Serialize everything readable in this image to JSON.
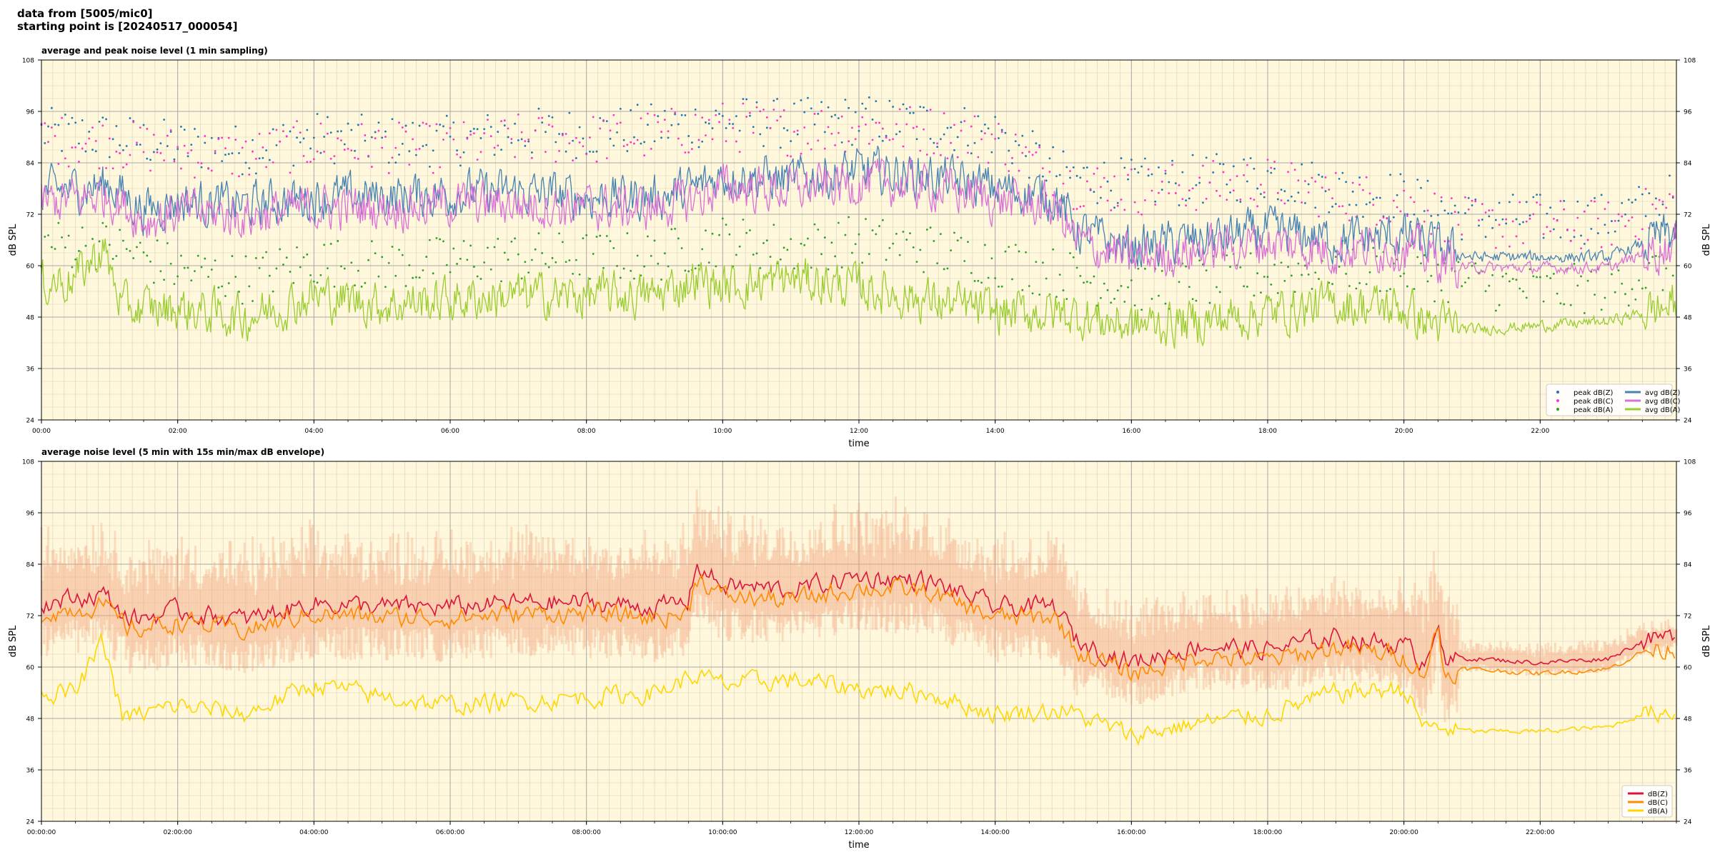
{
  "header": {
    "line1": "data from [5005/mic0]",
    "line2": "starting point is [20240517_000054]"
  },
  "chart_data": [
    {
      "type": "line",
      "title": "average and peak noise level (1 min sampling)",
      "xlabel": "time",
      "ylabel": "dB SPL",
      "ylim": [
        24,
        108
      ],
      "xlim_hours": [
        0,
        24
      ],
      "yticks": [
        24,
        36,
        48,
        60,
        72,
        84,
        96,
        108
      ],
      "xtick_labels": [
        "00:00",
        "02:00",
        "04:00",
        "06:00",
        "08:00",
        "10:00",
        "12:00",
        "14:00",
        "16:00",
        "18:00",
        "20:00",
        "22:00"
      ],
      "grid": true,
      "background": "#fff8dc",
      "legend_position": "lower-right",
      "legend_columns": 2,
      "series": [
        {
          "name": "peak dB(Z)",
          "style": "points",
          "color": "#1f77b4",
          "offset": 7.0,
          "anchors_hour": [
            0,
            1,
            2,
            3,
            4,
            5,
            6,
            7,
            8,
            9,
            10,
            11,
            12,
            13,
            14,
            15,
            16,
            17,
            18,
            19,
            20,
            21,
            22,
            23,
            24
          ],
          "anchors_db": [
            84,
            83,
            81,
            80,
            83,
            82,
            82,
            84,
            84,
            85,
            87,
            86,
            87,
            86,
            84,
            74,
            72,
            73,
            74,
            71,
            69,
            64,
            64,
            64,
            69
          ]
        },
        {
          "name": "peak dB(C)",
          "style": "points",
          "color": "#ff33cc",
          "offset": 5.5,
          "anchors_hour": [
            0,
            1,
            2,
            3,
            4,
            5,
            6,
            7,
            8,
            9,
            10,
            11,
            12,
            13,
            14,
            15,
            16,
            17,
            18,
            19,
            20,
            21,
            22,
            23,
            24
          ],
          "anchors_db": [
            84,
            83,
            81,
            80,
            83,
            82,
            82,
            84,
            84,
            85,
            87,
            86,
            87,
            86,
            84,
            74,
            72,
            73,
            74,
            71,
            69,
            64,
            64,
            64,
            69
          ]
        },
        {
          "name": "peak dB(A)",
          "style": "points",
          "color": "#2ca02c",
          "offset": 9.0,
          "anchors_hour": [
            0,
            1,
            2,
            3,
            4,
            5,
            6,
            7,
            8,
            9,
            10,
            11,
            12,
            13,
            14,
            15,
            16,
            17,
            18,
            19,
            20,
            21,
            22,
            23,
            24
          ],
          "anchors_db": [
            56,
            56,
            50,
            48,
            52,
            51,
            52,
            53,
            53,
            53,
            57,
            55,
            57,
            55,
            52,
            49,
            46,
            47,
            49,
            51,
            50,
            47,
            45,
            46,
            51
          ]
        },
        {
          "name": "avg dB(Z)",
          "style": "line",
          "color": "#4682b4",
          "offset": 0,
          "anchors_hour": [
            0,
            0.5,
            1,
            1.5,
            2,
            3,
            4,
            5,
            6,
            7,
            8,
            9,
            9.6,
            10,
            11,
            12,
            13,
            14,
            14.9,
            15.2,
            16,
            17,
            18,
            19,
            20,
            20.5,
            21,
            22,
            23,
            24
          ],
          "anchors_db": [
            77,
            78,
            79,
            73,
            75,
            74,
            76,
            76,
            77,
            77,
            76,
            76,
            78,
            81,
            80,
            82,
            81,
            78,
            76,
            68,
            64,
            66,
            68,
            66,
            67,
            64,
            62,
            62,
            62,
            68
          ]
        },
        {
          "name": "avg dB(C)",
          "style": "line",
          "color": "#da70d6",
          "offset": -2.5,
          "anchors_hour": [
            0,
            0.5,
            1,
            1.5,
            2,
            3,
            4,
            5,
            6,
            7,
            8,
            9,
            9.6,
            10,
            11,
            12,
            13,
            14,
            14.9,
            15.2,
            16,
            17,
            18,
            19,
            20,
            20.5,
            21,
            22,
            23,
            24
          ],
          "anchors_db": [
            77,
            78,
            79,
            73,
            75,
            74,
            76,
            76,
            77,
            77,
            76,
            76,
            78,
            81,
            80,
            82,
            81,
            78,
            76,
            68,
            64,
            66,
            68,
            66,
            67,
            64,
            62,
            62,
            62,
            68
          ]
        },
        {
          "name": "avg dB(A)",
          "style": "line",
          "color": "#9acd32",
          "offset": 0,
          "anchors_hour": [
            0,
            0.5,
            0.9,
            1.2,
            2,
            3,
            4,
            5,
            6,
            7,
            8,
            9,
            9.6,
            10,
            11,
            12,
            13,
            14,
            15,
            16,
            17,
            18,
            19,
            20,
            20.3,
            21,
            22,
            23,
            23.5,
            24
          ],
          "anchors_db": [
            56,
            57,
            64,
            50,
            50,
            48,
            53,
            51,
            52,
            53,
            53,
            53,
            57,
            55,
            57,
            55,
            52,
            49,
            49,
            46,
            47,
            49,
            51,
            50,
            47,
            45,
            46,
            47,
            49,
            51
          ]
        }
      ]
    },
    {
      "type": "line",
      "title": "average noise level (5 min with 15s min/max dB envelope)",
      "xlabel": "time",
      "ylabel": "dB SPL",
      "ylim": [
        24,
        108
      ],
      "xlim_hours": [
        0,
        24
      ],
      "yticks": [
        24,
        36,
        48,
        60,
        72,
        84,
        96,
        108
      ],
      "xtick_labels": [
        "00:00:00",
        "02:00:00",
        "04:00:00",
        "06:00:00",
        "08:00:00",
        "10:00:00",
        "12:00:00",
        "14:00:00",
        "16:00:00",
        "18:00:00",
        "20:00:00",
        "22:00:00"
      ],
      "grid": true,
      "background": "#fff8dc",
      "legend_position": "lower-right",
      "envelope": {
        "color": "#f4a582",
        "spread_db": 9
      },
      "series": [
        {
          "name": "dB(Z)",
          "color": "#dc143c",
          "offset": 0,
          "anchors_hour": [
            0,
            0.5,
            0.9,
            1.3,
            2,
            3,
            4,
            5,
            6,
            7,
            8,
            9,
            9.5,
            9.6,
            10,
            11,
            12,
            13,
            14,
            14.9,
            15.2,
            16,
            17,
            18,
            19,
            20,
            20.3,
            20.5,
            20.6,
            20.8,
            21,
            22,
            23,
            23.5,
            24
          ],
          "anchors_db": [
            75,
            76,
            77,
            71,
            73,
            71,
            75,
            74,
            74,
            75,
            75,
            74,
            75,
            84,
            79,
            78,
            81,
            80,
            74,
            74,
            66,
            61,
            65,
            64,
            67,
            65,
            61,
            72,
            60,
            62,
            62,
            61,
            62,
            66,
            67
          ]
        },
        {
          "name": "dB(C)",
          "color": "#ff8c00",
          "offset": -2.5,
          "anchors_hour": [
            0,
            0.5,
            0.9,
            1.3,
            2,
            3,
            4,
            5,
            6,
            7,
            8,
            9,
            9.5,
            9.6,
            10,
            11,
            12,
            13,
            14,
            14.9,
            15.2,
            16,
            17,
            18,
            19,
            20,
            20.3,
            20.5,
            20.6,
            20.8,
            21,
            22,
            23,
            23.5,
            24
          ],
          "anchors_db": [
            75,
            76,
            77,
            71,
            73,
            71,
            75,
            74,
            74,
            75,
            75,
            74,
            75,
            84,
            79,
            78,
            81,
            80,
            74,
            74,
            66,
            61,
            65,
            64,
            67,
            65,
            61,
            72,
            60,
            62,
            62,
            61,
            62,
            66,
            67
          ]
        },
        {
          "name": "dB(A)",
          "color": "#ffd700",
          "offset": 0,
          "anchors_hour": [
            0,
            0.5,
            0.9,
            1.2,
            2,
            3,
            4,
            5,
            6,
            7,
            8,
            9,
            9.6,
            10,
            11,
            12,
            13,
            14,
            15,
            16,
            17,
            18,
            19,
            20,
            20.3,
            21,
            22,
            23,
            23.5,
            24
          ],
          "anchors_db": [
            54,
            54,
            66,
            48,
            51,
            49,
            56,
            53,
            51,
            52,
            53,
            54,
            58,
            56,
            57,
            55,
            54,
            49,
            50,
            44,
            47,
            49,
            54,
            55,
            46,
            45,
            45,
            46,
            49,
            50
          ]
        }
      ]
    }
  ]
}
